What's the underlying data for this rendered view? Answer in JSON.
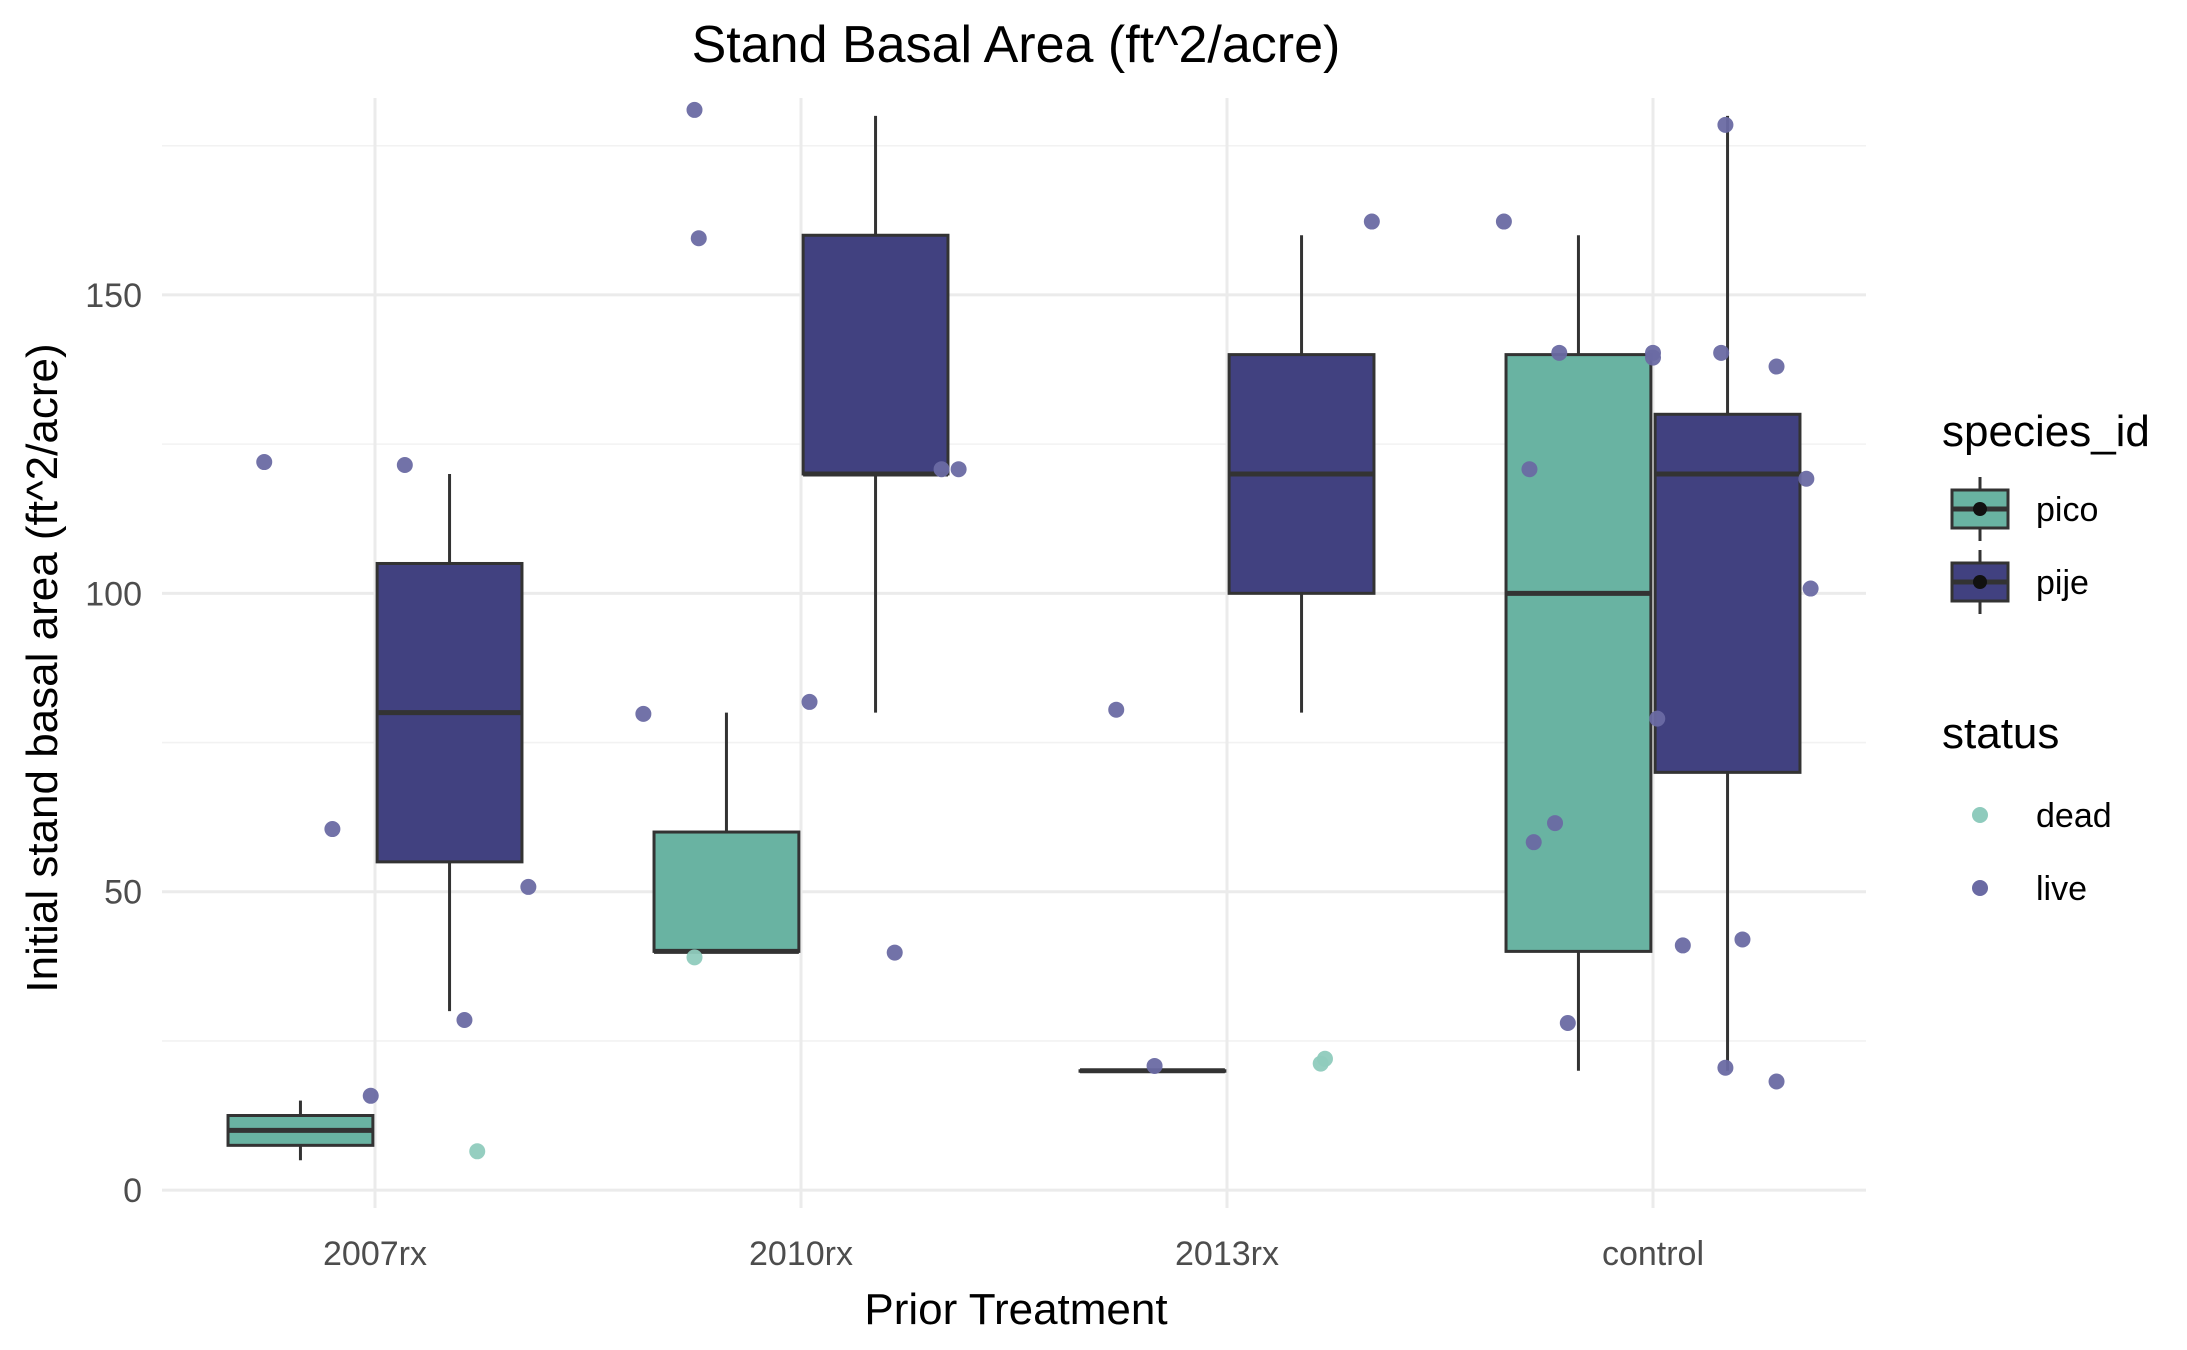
{
  "chart_data": {
    "type": "box",
    "title": "Stand Basal Area (ft^2/acre)",
    "xlabel": "Prior Treatment",
    "ylabel": "Initial stand basal area (ft^2/acre)",
    "categories": [
      "2007rx",
      "2010rx",
      "2013rx",
      "control"
    ],
    "ylim": [
      -3,
      183
    ],
    "yticks": [
      0,
      50,
      100,
      150
    ],
    "grid": true,
    "legend_position": "right",
    "legends": [
      {
        "title": "species_id",
        "entries": [
          {
            "label": "pico",
            "color": "#69b3a2"
          },
          {
            "label": "pije",
            "color": "#414180"
          }
        ]
      },
      {
        "title": "status",
        "entries": [
          {
            "label": "dead",
            "color": "#8fcbbd"
          },
          {
            "label": "live",
            "color": "#6a6aa3"
          }
        ]
      }
    ],
    "boxes": [
      {
        "category": "2007rx",
        "species": "pico",
        "min": 5,
        "q1": 7.5,
        "median": 10,
        "q3": 12.5,
        "max": 15
      },
      {
        "category": "2007rx",
        "species": "pije",
        "min": 30,
        "q1": 55,
        "median": 80,
        "q3": 105,
        "max": 120
      },
      {
        "category": "2010rx",
        "species": "pico",
        "min": 40,
        "q1": 40,
        "median": 40,
        "q3": 60,
        "max": 80
      },
      {
        "category": "2010rx",
        "species": "pije",
        "min": 80,
        "q1": 120,
        "median": 120,
        "q3": 160,
        "max": 180
      },
      {
        "category": "2013rx",
        "species": "pico",
        "min": 20,
        "q1": 20,
        "median": 20,
        "q3": 20,
        "max": 20
      },
      {
        "category": "2013rx",
        "species": "pije",
        "min": 80,
        "q1": 100,
        "median": 120,
        "q3": 140,
        "max": 160
      },
      {
        "category": "control",
        "species": "pico",
        "min": 20,
        "q1": 40,
        "median": 100,
        "q3": 140,
        "max": 160
      },
      {
        "category": "control",
        "species": "pije",
        "min": 20,
        "q1": 70,
        "median": 120,
        "q3": 130,
        "max": 180
      }
    ],
    "points": [
      {
        "category": "2007rx",
        "x_offset": -0.26,
        "y": 122,
        "status": "live"
      },
      {
        "category": "2007rx",
        "x_offset": -0.1,
        "y": 60.5,
        "status": "live"
      },
      {
        "category": "2007rx",
        "x_offset": -0.01,
        "y": 15.8,
        "status": "live"
      },
      {
        "category": "2007rx",
        "x_offset": 0.07,
        "y": 121.5,
        "status": "live"
      },
      {
        "category": "2007rx",
        "x_offset": 0.21,
        "y": 28.5,
        "status": "live"
      },
      {
        "category": "2007rx",
        "x_offset": 0.24,
        "y": 6.5,
        "status": "dead"
      },
      {
        "category": "2007rx",
        "x_offset": 0.36,
        "y": 50.8,
        "status": "live"
      },
      {
        "category": "2010rx",
        "x_offset": -0.37,
        "y": 79.8,
        "status": "live"
      },
      {
        "category": "2010rx",
        "x_offset": -0.25,
        "y": 181,
        "status": "live"
      },
      {
        "category": "2010rx",
        "x_offset": -0.24,
        "y": 159.5,
        "status": "live"
      },
      {
        "category": "2010rx",
        "x_offset": -0.25,
        "y": 39,
        "status": "dead"
      },
      {
        "category": "2010rx",
        "x_offset": 0.02,
        "y": 81.8,
        "status": "live"
      },
      {
        "category": "2010rx",
        "x_offset": 0.22,
        "y": 39.8,
        "status": "live"
      },
      {
        "category": "2010rx",
        "x_offset": 0.33,
        "y": 120.8,
        "status": "live"
      },
      {
        "category": "2010rx",
        "x_offset": 0.37,
        "y": 120.8,
        "status": "live"
      },
      {
        "category": "2013rx",
        "x_offset": -0.26,
        "y": 80.5,
        "status": "live"
      },
      {
        "category": "2013rx",
        "x_offset": -0.17,
        "y": 20.8,
        "status": "live"
      },
      {
        "category": "2013rx",
        "x_offset": 0.22,
        "y": 21.2,
        "status": "dead"
      },
      {
        "category": "2013rx",
        "x_offset": 0.23,
        "y": 22,
        "status": "dead"
      },
      {
        "category": "2013rx",
        "x_offset": 0.34,
        "y": 162.3,
        "status": "live"
      },
      {
        "category": "control",
        "x_offset": -0.35,
        "y": 162.3,
        "status": "live"
      },
      {
        "category": "control",
        "x_offset": -0.29,
        "y": 120.8,
        "status": "live"
      },
      {
        "category": "control",
        "x_offset": -0.28,
        "y": 58.3,
        "status": "live"
      },
      {
        "category": "control",
        "x_offset": -0.23,
        "y": 61.5,
        "status": "live"
      },
      {
        "category": "control",
        "x_offset": -0.22,
        "y": 140.3,
        "status": "live"
      },
      {
        "category": "control",
        "x_offset": -0.2,
        "y": 28,
        "status": "live"
      },
      {
        "category": "control",
        "x_offset": 0.0,
        "y": 140.3,
        "status": "live"
      },
      {
        "category": "control",
        "x_offset": 0.0,
        "y": 139.5,
        "status": "live"
      },
      {
        "category": "control",
        "x_offset": 0.01,
        "y": 79,
        "status": "live"
      },
      {
        "category": "control",
        "x_offset": 0.07,
        "y": 41,
        "status": "live"
      },
      {
        "category": "control",
        "x_offset": 0.16,
        "y": 140.3,
        "status": "live"
      },
      {
        "category": "control",
        "x_offset": 0.17,
        "y": 178.5,
        "status": "live"
      },
      {
        "category": "control",
        "x_offset": 0.17,
        "y": 20.5,
        "status": "live"
      },
      {
        "category": "control",
        "x_offset": 0.21,
        "y": 42,
        "status": "live"
      },
      {
        "category": "control",
        "x_offset": 0.29,
        "y": 138,
        "status": "live"
      },
      {
        "category": "control",
        "x_offset": 0.29,
        "y": 18.2,
        "status": "live"
      },
      {
        "category": "control",
        "x_offset": 0.36,
        "y": 119.2,
        "status": "live"
      },
      {
        "category": "control",
        "x_offset": 0.37,
        "y": 100.8,
        "status": "live"
      }
    ]
  }
}
